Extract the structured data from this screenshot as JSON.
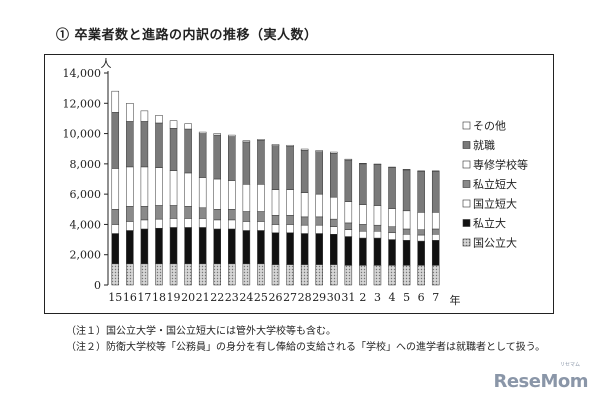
{
  "title": "① 卒業者数と進路の内訳の推移（実人数）",
  "notes": [
    "（注１）国公立大学・国公立短大には管外大学校等も含む。",
    "（注２）防衛大学校等「公務員」の身分を有し俸給の支給される「学校」への進学者は就職者として扱う。"
  ],
  "watermark": "ReseMom",
  "watermark_sub": "リセマム",
  "chart_data": {
    "type": "bar",
    "stacked": true,
    "ylabel": "人",
    "xlabel": "年",
    "ylim": [
      0,
      14000
    ],
    "yticks": [
      0,
      2000,
      4000,
      6000,
      8000,
      10000,
      12000,
      14000
    ],
    "ytick_labels": [
      "0",
      "2,000",
      "4,000",
      "6,000",
      "8,000",
      "10,000",
      "12,000",
      "14,000"
    ],
    "grid": false,
    "legend_position": "right",
    "categories": [
      "15",
      "16",
      "17",
      "18",
      "19",
      "20",
      "21",
      "22",
      "23",
      "24",
      "25",
      "26",
      "27",
      "28",
      "29",
      "30",
      "31",
      "2",
      "3",
      "4",
      "5",
      "6",
      "7"
    ],
    "series": [
      {
        "name": "国公立大",
        "color": "#c8c8c8",
        "pattern": "dots",
        "values": [
          1400,
          1400,
          1400,
          1400,
          1400,
          1400,
          1400,
          1400,
          1400,
          1400,
          1400,
          1350,
          1350,
          1350,
          1350,
          1350,
          1300,
          1300,
          1300,
          1300,
          1300,
          1300,
          1300
        ]
      },
      {
        "name": "私立大",
        "color": "#111111",
        "pattern": "solid",
        "values": [
          2000,
          2200,
          2300,
          2350,
          2400,
          2400,
          2400,
          2300,
          2300,
          2200,
          2200,
          2100,
          2100,
          2050,
          2050,
          2000,
          1900,
          1800,
          1800,
          1700,
          1650,
          1600,
          1650
        ]
      },
      {
        "name": "国立短大",
        "color": "#ffffff",
        "pattern": "solid",
        "values": [
          600,
          600,
          600,
          600,
          600,
          600,
          600,
          600,
          600,
          600,
          600,
          550,
          550,
          550,
          550,
          500,
          450,
          450,
          450,
          450,
          400,
          400,
          400
        ]
      },
      {
        "name": "私立短大",
        "color": "#8a8a8a",
        "pattern": "solid",
        "values": [
          1000,
          1000,
          900,
          900,
          850,
          800,
          700,
          700,
          700,
          650,
          650,
          600,
          600,
          550,
          550,
          500,
          450,
          450,
          400,
          400,
          350,
          350,
          350
        ]
      },
      {
        "name": "専修学校等",
        "color": "#ffffff",
        "pattern": "solid",
        "values": [
          2700,
          2600,
          2600,
          2500,
          2300,
          2200,
          2000,
          2000,
          1900,
          1800,
          1800,
          1700,
          1700,
          1600,
          1500,
          1450,
          1400,
          1300,
          1300,
          1200,
          1200,
          1150,
          1100
        ]
      },
      {
        "name": "就職",
        "color": "#7a7a7a",
        "pattern": "solid",
        "values": [
          3700,
          3000,
          3000,
          2950,
          2800,
          2900,
          2900,
          2900,
          2900,
          2800,
          2900,
          2900,
          2850,
          2800,
          2800,
          2900,
          2750,
          2700,
          2700,
          2700,
          2700,
          2700,
          2700
        ]
      },
      {
        "name": "その他",
        "color": "#ffffff",
        "pattern": "solid",
        "values": [
          1400,
          1200,
          700,
          500,
          500,
          350,
          100,
          100,
          100,
          80,
          70,
          80,
          80,
          80,
          80,
          80,
          60,
          40,
          40,
          40,
          40,
          40,
          40
        ]
      }
    ]
  }
}
